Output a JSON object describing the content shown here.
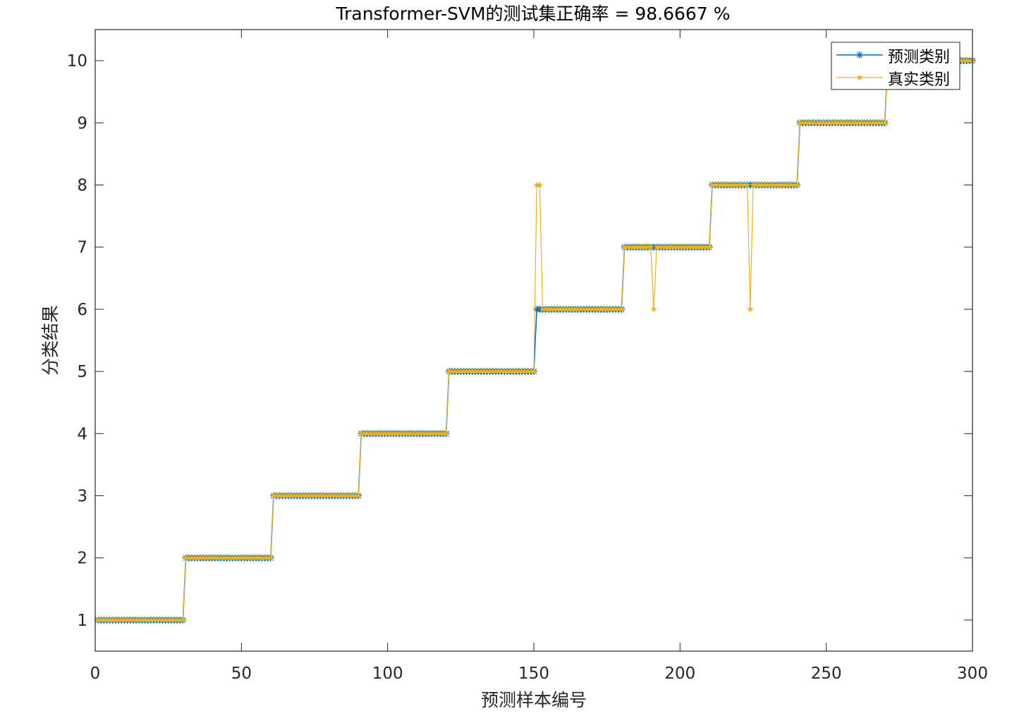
{
  "chart_data": {
    "type": "line",
    "title": "Transformer-SVM的测试集正确率 = 98.6667 %",
    "xlabel": "预测样本编号",
    "ylabel": "分类结果",
    "xlim": [
      0,
      300
    ],
    "ylim": [
      0.5,
      10.5
    ],
    "xticks": [
      0,
      50,
      100,
      150,
      200,
      250,
      300
    ],
    "yticks": [
      1,
      2,
      3,
      4,
      5,
      6,
      7,
      8,
      9,
      10
    ],
    "grid": false,
    "legend_position": "top-right",
    "segments": [
      {
        "from": 1,
        "to": 30,
        "class": 1
      },
      {
        "from": 31,
        "to": 60,
        "class": 2
      },
      {
        "from": 61,
        "to": 90,
        "class": 3
      },
      {
        "from": 91,
        "to": 120,
        "class": 4
      },
      {
        "from": 121,
        "to": 150,
        "class": 5
      },
      {
        "from": 151,
        "to": 180,
        "class": 6
      },
      {
        "from": 181,
        "to": 210,
        "class": 7
      },
      {
        "from": 211,
        "to": 240,
        "class": 8
      },
      {
        "from": 241,
        "to": 270,
        "class": 9
      },
      {
        "from": 271,
        "to": 300,
        "class": 10
      }
    ],
    "series": [
      {
        "name": "预测类别",
        "color": "#0072BD",
        "marker": "*",
        "overrides": []
      },
      {
        "name": "真实类别",
        "color": "#EDB120",
        "marker": "pentagram",
        "overrides": [
          {
            "x": 151,
            "y": 8
          },
          {
            "x": 152,
            "y": 8
          },
          {
            "x": 191,
            "y": 6
          },
          {
            "x": 224,
            "y": 6
          }
        ]
      }
    ]
  }
}
